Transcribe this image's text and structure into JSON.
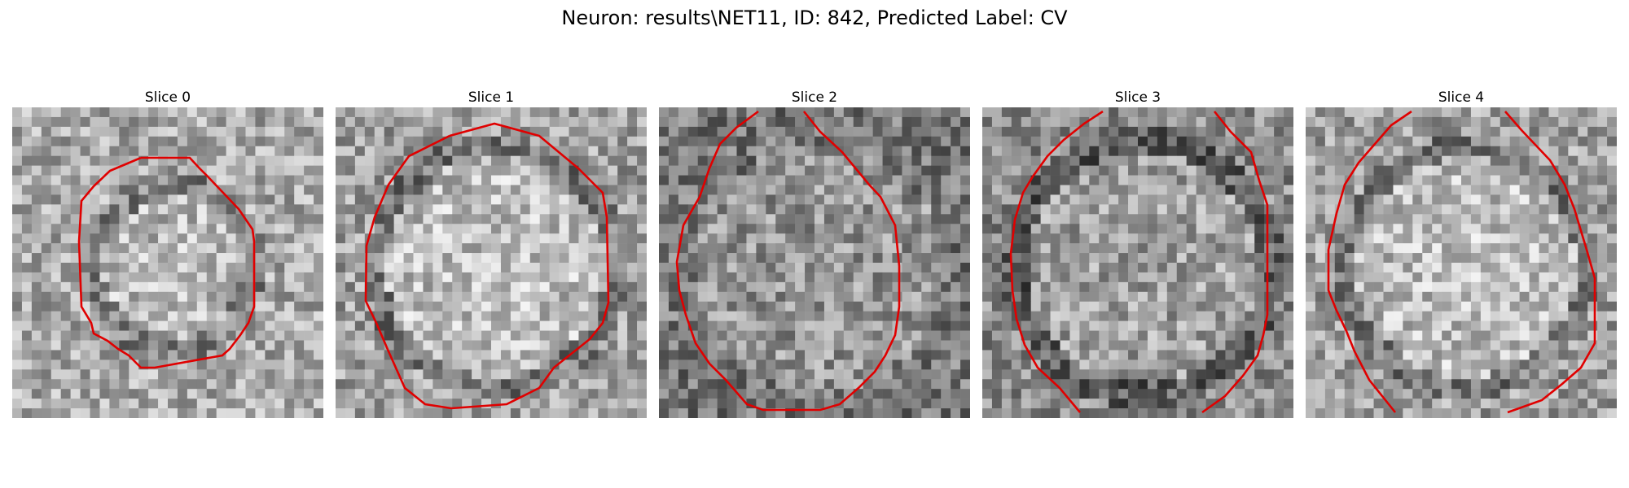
{
  "figure": {
    "title": "Neuron: results\\NET11, ID: 842, Predicted Label: CV"
  },
  "colors": {
    "contour": "#e00000",
    "background": "#ffffff"
  },
  "panels": [
    {
      "title": "Slice 0",
      "style": "compact",
      "contour_shape": "closed octagonal outline centered in the slice"
    },
    {
      "title": "Slice 1",
      "style": "bright",
      "contour_shape": "large closed octagonal outline filling the slice"
    },
    {
      "title": "Slice 2",
      "style": "noisy",
      "contour_shape": "large outline, open at top with edges to the frame"
    },
    {
      "title": "Slice 3",
      "style": "dark",
      "contour_shape": "large outline, open at top and bottom"
    },
    {
      "title": "Slice 4",
      "style": "bright",
      "contour_shape": "large outline, open at top and bottom"
    }
  ]
}
